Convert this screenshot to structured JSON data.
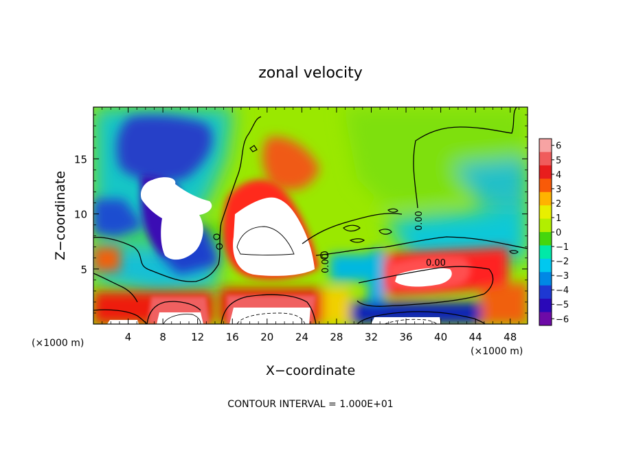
{
  "chart_data": {
    "type": "heatmap",
    "title": "zonal velocity",
    "xlabel": "X−coordinate",
    "ylabel": "Z−coordinate",
    "x_unit_left": "(×1000 m)",
    "x_unit_right": "(×1000 m)",
    "xlim": [
      0,
      50
    ],
    "ylim": [
      0,
      19.7
    ],
    "x_ticks": [
      4,
      8,
      12,
      16,
      20,
      24,
      28,
      32,
      36,
      40,
      44,
      48
    ],
    "y_ticks": [
      5,
      10,
      15
    ],
    "colorbar": {
      "min": -6,
      "max": 6,
      "ticks": [
        6,
        5,
        4,
        3,
        2,
        1,
        0,
        -1,
        -2,
        -3,
        -4,
        -5,
        -6
      ],
      "tick_labels": [
        "6",
        "5",
        "4",
        "3",
        "2",
        "1",
        "0",
        "−1",
        "−2",
        "−3",
        "−4",
        "−5",
        "−6"
      ],
      "colors": [
        "#f7a3a3",
        "#f05c5c",
        "#e81d1d",
        "#f85a08",
        "#ffb300",
        "#e8ef00",
        "#b2ee00",
        "#45d60d",
        "#00e9a8",
        "#00c8ef",
        "#0088e5",
        "#1e38d2",
        "#2a08b8",
        "#6d0aa7"
      ]
    },
    "contour_label": "0.00",
    "footer": "CONTOUR INTERVAL = 1.000E+01",
    "regions": [
      {
        "label": "upper-left negative core",
        "x": 8,
        "z": 14.5,
        "value": -5
      },
      {
        "label": "left saturated negative (off-scale)",
        "x": 9,
        "z": 10,
        "value": -7
      },
      {
        "label": "central positive jet",
        "x": 21,
        "z": 10.5,
        "value": 5
      },
      {
        "label": "central saturated positive (off-scale)",
        "x": 20,
        "z": 8,
        "value": 7
      },
      {
        "label": "upper positive lobe",
        "x": 22.5,
        "z": 14.5,
        "value": 3.5
      },
      {
        "label": "surface saturated positive",
        "x": 20,
        "z": 1,
        "value": 7
      },
      {
        "label": "right positive core",
        "x": 37.5,
        "z": 4,
        "value": 5
      },
      {
        "label": "surface negative band",
        "x": 36,
        "z": 0.8,
        "value": -5
      }
    ]
  }
}
